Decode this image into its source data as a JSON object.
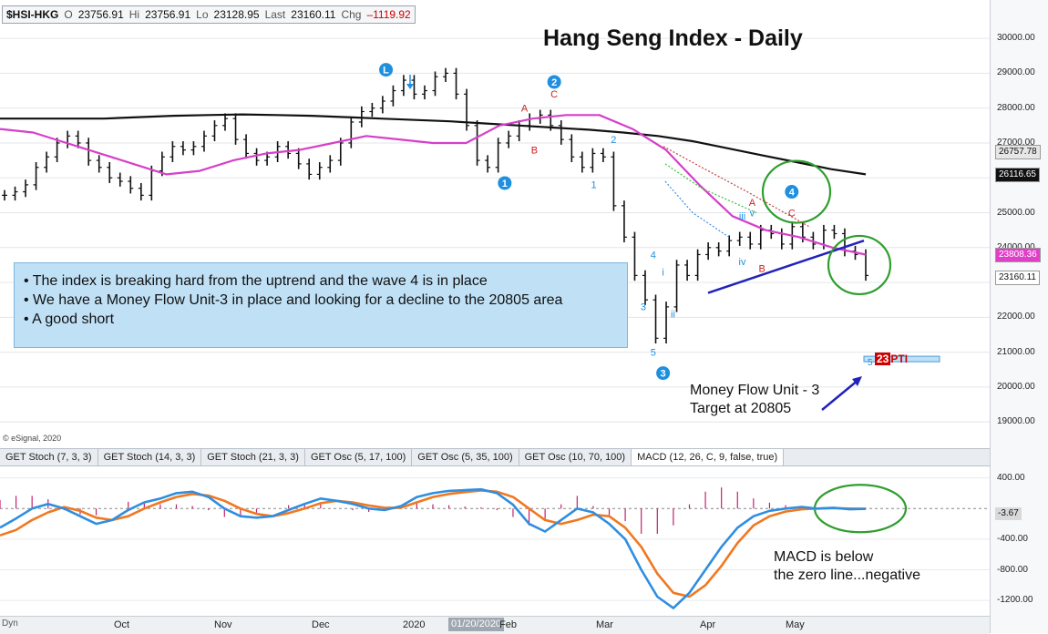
{
  "quote": {
    "symbol": "$HSI-HKG",
    "open_label": "O",
    "open": "23756.91",
    "high_label": "Hi",
    "high": "23756.91",
    "low_label": "Lo",
    "low": "23128.95",
    "last_label": "Last",
    "last": "23160.11",
    "chg_label": "Chg",
    "chg": "–1119.92"
  },
  "title": "Hang Seng Index - Daily",
  "info_lines": [
    "• The index is breaking hard from the uptrend and the wave 4 is in place",
    "• We have a Money Flow Unit-3 in place and looking for a decline to the 20805 area",
    "• A good short"
  ],
  "notes": {
    "target_line1": "Money Flow Unit - 3",
    "target_line2": "Target at 20805",
    "macd_line1": "MACD is below",
    "macd_line2": "the zero line...negative"
  },
  "copyright": "© eSignal, 2020",
  "tabs": [
    "GET Stoch (7, 3, 3)",
    "GET Stoch (14, 3, 3)",
    "GET Stoch (21, 3, 3)",
    "GET Osc (5, 17, 100)",
    "GET Osc (5, 35, 100)",
    "GET Osc (10, 70, 100)",
    "MACD (12, 26, C, 9, false, true)"
  ],
  "active_tab": 6,
  "price_tags": [
    {
      "text": "26757.78",
      "value": 26757.78,
      "bg": "#e6e6e6",
      "fg": "#111111"
    },
    {
      "text": "26116.65",
      "value": 26116.65,
      "bg": "#111111",
      "fg": "#ffffff"
    },
    {
      "text": "23808.36",
      "value": 23808.36,
      "bg": "#e040c8",
      "fg": "#ffffff"
    },
    {
      "text": "23160.11",
      "value": 23160.11,
      "bg": "#ffffff",
      "fg": "#111111"
    }
  ],
  "macd_tag": "-3.67",
  "pti": {
    "num": "23",
    "label": "PTI"
  },
  "bottom": {
    "dyn": "Dyn",
    "months": [
      "Oct",
      "Nov",
      "Dec",
      "2020",
      "Feb",
      "Mar",
      "Apr",
      "May"
    ],
    "highlight_date": "01/20/2020"
  },
  "colors": {
    "price_bars": "#111111",
    "ma_long": "#111111",
    "ma_mid": "#d63fc9",
    "trendline": "#2222bb",
    "circles": "#2e9e2e",
    "wave_blue": "#1f8fe0",
    "wave_red": "#cc2222",
    "macd_line": "#2f8ee0",
    "signal_line": "#f07820",
    "histogram": "#c0226e"
  },
  "chart_data": [
    {
      "type": "line",
      "title": "Hang Seng Index - Daily",
      "x_labels": [
        "Oct",
        "Nov",
        "Dec",
        "2020",
        "Feb",
        "Mar",
        "Apr",
        "May"
      ],
      "y_ticks": [
        "19000.00",
        "20000.00",
        "21000.00",
        "22000.00",
        "23000.00",
        "24000.00",
        "25000.00",
        "26000.00",
        "27000.00",
        "28000.00",
        "29000.00",
        "30000.00"
      ],
      "ylim": [
        18300,
        31100
      ],
      "series": [
        {
          "kind": "price",
          "values": [
            25500,
            25600,
            25800,
            26300,
            26600,
            27000,
            27200,
            27000,
            26500,
            26300,
            26000,
            25900,
            25700,
            25500,
            26200,
            26600,
            26900,
            26800,
            26900,
            27200,
            27500,
            27700,
            27100,
            26700,
            26500,
            26600,
            26900,
            26700,
            26400,
            26100,
            26300,
            26500,
            27000,
            27600,
            27900,
            28000,
            28200,
            28500,
            28800,
            28400,
            28500,
            28900,
            29000,
            28400,
            27500,
            26500,
            26300,
            27000,
            27200,
            27500,
            27700,
            27800,
            27500,
            27100,
            26600,
            26300,
            26700,
            26600,
            25200,
            24300,
            23200,
            22500,
            21400,
            22300,
            23500,
            23200,
            23800,
            24000,
            23900,
            24200,
            24300,
            24100,
            24500,
            24400,
            24100,
            24600,
            24300,
            24100,
            24500,
            24400,
            23900,
            23800,
            23200
          ]
        },
        {
          "kind": "ma_long",
          "values": [
            27700,
            27700,
            27700,
            27700,
            27740,
            27780,
            27800,
            27820,
            27800,
            27780,
            27740,
            27700,
            27660,
            27620,
            27560,
            27500,
            27440,
            27380,
            27300,
            27200,
            27050,
            26850,
            26650,
            26450,
            26250,
            26100
          ]
        },
        {
          "kind": "ma_mid",
          "values": [
            27400,
            27300,
            27000,
            26700,
            26400,
            26100,
            26200,
            26500,
            26700,
            26800,
            27000,
            27200,
            27100,
            27000,
            27000,
            27500,
            27700,
            27800,
            27800,
            27400,
            26800,
            25800,
            24900,
            24500,
            24300,
            24000,
            23800
          ]
        }
      ],
      "annotations": [
        {
          "label": "L",
          "x": 0.39,
          "y": 29100,
          "color": "blue",
          "style": "circle"
        },
        {
          "label": "2",
          "x": 0.56,
          "y": 28750,
          "color": "blue",
          "style": "circle"
        },
        {
          "label": "1",
          "x": 0.51,
          "y": 25850,
          "color": "blue",
          "style": "circle"
        },
        {
          "label": "3",
          "x": 0.67,
          "y": 20400,
          "color": "blue",
          "style": "circle"
        },
        {
          "label": "4",
          "x": 0.8,
          "y": 25600,
          "color": "blue",
          "style": "circle"
        },
        {
          "label": "A",
          "x": 0.53,
          "y": 27900,
          "color": "red",
          "style": "text"
        },
        {
          "label": "B",
          "x": 0.54,
          "y": 26700,
          "color": "red",
          "style": "text"
        },
        {
          "label": "C",
          "x": 0.56,
          "y": 28300,
          "color": "red",
          "style": "text"
        },
        {
          "label": "A",
          "x": 0.76,
          "y": 25200,
          "color": "red",
          "style": "text"
        },
        {
          "label": "B",
          "x": 0.77,
          "y": 23300,
          "color": "red",
          "style": "text"
        },
        {
          "label": "C",
          "x": 0.8,
          "y": 24900,
          "color": "red",
          "style": "text"
        },
        {
          "label": "1",
          "x": 0.6,
          "y": 25700,
          "color": "blue",
          "style": "text"
        },
        {
          "label": "2",
          "x": 0.62,
          "y": 27000,
          "color": "blue",
          "style": "text"
        },
        {
          "label": "3",
          "x": 0.65,
          "y": 22200,
          "color": "blue",
          "style": "text"
        },
        {
          "label": "4",
          "x": 0.66,
          "y": 23700,
          "color": "blue",
          "style": "text"
        },
        {
          "label": "5",
          "x": 0.66,
          "y": 20900,
          "color": "blue",
          "style": "text"
        },
        {
          "label": "i",
          "x": 0.67,
          "y": 23200,
          "color": "blue",
          "style": "text"
        },
        {
          "label": "ii",
          "x": 0.68,
          "y": 22000,
          "color": "blue",
          "style": "text"
        },
        {
          "label": "iii",
          "x": 0.75,
          "y": 24800,
          "color": "blue",
          "style": "text"
        },
        {
          "label": "iv",
          "x": 0.75,
          "y": 23500,
          "color": "blue",
          "style": "text"
        },
        {
          "label": "v",
          "x": 0.76,
          "y": 24900,
          "color": "blue",
          "style": "text"
        }
      ],
      "target": {
        "value": 20805,
        "label": "5"
      }
    },
    {
      "type": "line",
      "title": "MACD (12, 26, C, 9, false, true)",
      "y_ticks": [
        "-1200.00",
        "-800.00",
        "-400.00",
        "400.00"
      ],
      "ylim": [
        -1400,
        550
      ],
      "series": [
        {
          "kind": "macd",
          "values": [
            -250,
            -130,
            0,
            60,
            0,
            -100,
            -200,
            -150,
            -20,
            80,
            130,
            200,
            220,
            150,
            0,
            -100,
            -120,
            -100,
            -20,
            60,
            130,
            100,
            60,
            0,
            -20,
            30,
            150,
            200,
            230,
            240,
            250,
            200,
            50,
            -200,
            -300,
            -150,
            0,
            -50,
            -200,
            -400,
            -800,
            -1150,
            -1300,
            -1100,
            -800,
            -500,
            -250,
            -100,
            -30,
            0,
            20,
            0,
            10,
            -10,
            -3.67
          ]
        },
        {
          "kind": "signal",
          "values": [
            -350,
            -280,
            -150,
            -50,
            20,
            -30,
            -120,
            -150,
            -100,
            0,
            80,
            150,
            190,
            170,
            100,
            0,
            -70,
            -100,
            -60,
            0,
            70,
            100,
            80,
            40,
            10,
            10,
            80,
            150,
            190,
            215,
            235,
            220,
            150,
            0,
            -150,
            -200,
            -150,
            -80,
            -100,
            -250,
            -500,
            -850,
            -1100,
            -1150,
            -1000,
            -750,
            -450,
            -220,
            -100,
            -40,
            -10,
            0,
            5,
            0,
            -3
          ]
        }
      ]
    }
  ]
}
